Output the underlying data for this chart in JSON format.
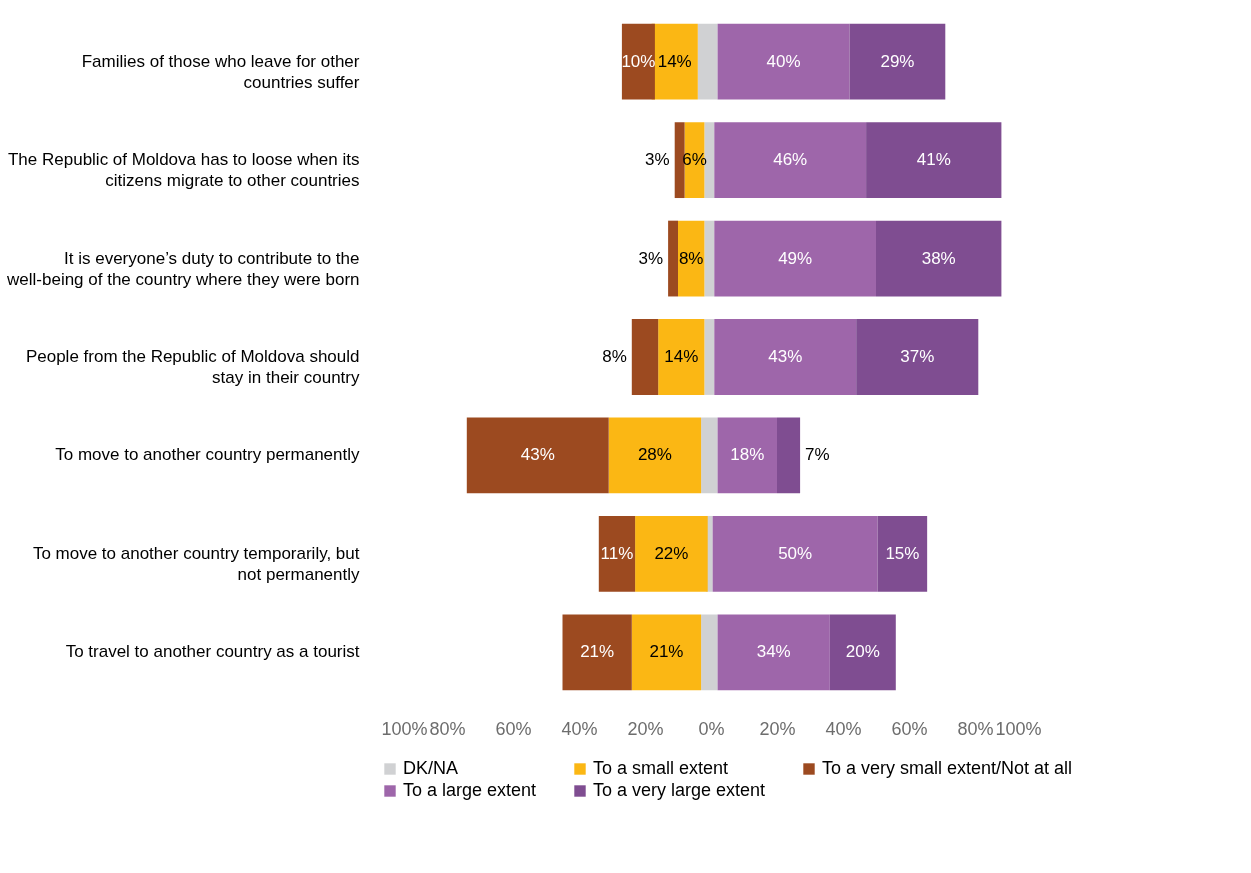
{
  "chart_data": {
    "type": "bar",
    "orientation": "horizontal",
    "legend": "bottom",
    "categories": [
      "Families of those who leave for other countries suffer",
      "The Republic of Moldova has to loose when its citizens migrate to other countries",
      "It is everyone’s duty to contribute to the well-being of the country where they were born",
      "People from the Republic of Moldova should stay in their country",
      "To move to another country permanently",
      "To move to another country temporarily, but not permanently",
      "To travel to another country as a tourist"
    ],
    "xlim": [
      -100,
      100
    ],
    "xticks": [
      {
        "value": -100,
        "label": "100%"
      },
      {
        "value": -80,
        "label": "80%"
      },
      {
        "value": -60,
        "label": "60%"
      },
      {
        "value": -40,
        "label": "40%"
      },
      {
        "value": -20,
        "label": "20%"
      },
      {
        "value": 0,
        "label": "0%"
      },
      {
        "value": 20,
        "label": "20%"
      },
      {
        "value": 40,
        "label": "40%"
      },
      {
        "value": 60,
        "label": "60%"
      },
      {
        "value": 80,
        "label": "80%"
      },
      {
        "value": 100,
        "label": "100%"
      }
    ],
    "series": [
      {
        "name": "DK/NA",
        "color": "#d0d1d3",
        "values": [
          6,
          3,
          3,
          3,
          5,
          2,
          5
        ],
        "base": [
          -4,
          -2,
          -2,
          -2,
          -3,
          -1.5,
          -3
        ]
      },
      {
        "name": "To a small extent",
        "color": "#fbb714",
        "values": [
          14,
          6,
          8,
          14,
          28,
          22,
          21
        ],
        "base": [
          -18,
          -8,
          -10,
          -16,
          -31,
          -23,
          -24
        ],
        "value_labels": [
          "14%",
          "6%",
          "8%",
          "14%",
          "28%",
          "22%",
          "21%"
        ]
      },
      {
        "name": "To a very small extent/Not at all",
        "color": "#9c4a20",
        "values": [
          10,
          3,
          3,
          8,
          43,
          11,
          21
        ],
        "base": [
          -27,
          -11,
          -13,
          -24,
          -74,
          -34,
          -45
        ],
        "value_labels": [
          "10%",
          "3%",
          "3%",
          "8%",
          "43%",
          "11%",
          "21%"
        ]
      },
      {
        "name": "To a large extent",
        "color": "#9e66aa",
        "values": [
          40,
          46,
          49,
          43,
          18,
          50,
          34
        ],
        "base": [
          2,
          1,
          1,
          1,
          2,
          0.5,
          2
        ],
        "value_labels": [
          "40%",
          "46%",
          "49%",
          "43%",
          "18%",
          "50%",
          "34%"
        ]
      },
      {
        "name": "To a very large extent",
        "color": "#7f4d91",
        "values": [
          29,
          41,
          38,
          37,
          7,
          15,
          20
        ],
        "base": [
          42,
          47,
          50,
          44,
          20,
          50.5,
          36
        ],
        "value_labels": [
          "29%",
          "41%",
          "38%",
          "37%",
          "7%",
          "15%",
          "20%"
        ]
      }
    ]
  }
}
